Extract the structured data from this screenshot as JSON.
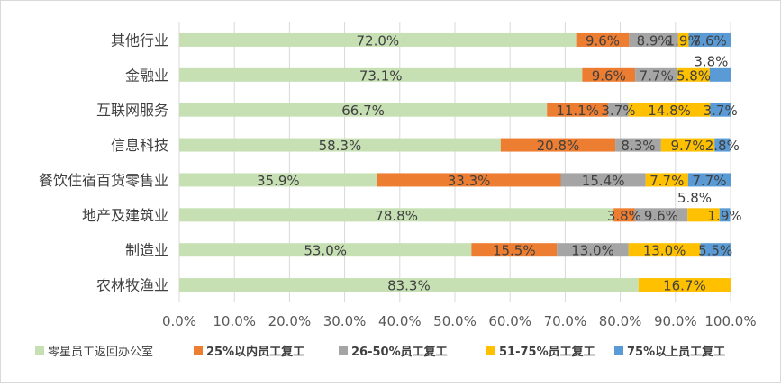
{
  "chart_data": {
    "type": "bar",
    "orientation": "horizontal",
    "stacked": true,
    "percent_stacked": true,
    "title": "",
    "xlabel": "",
    "ylabel": "",
    "xlim": [
      0,
      100
    ],
    "x_ticks": [
      "0.0%",
      "10.0%",
      "20.0%",
      "30.0%",
      "40.0%",
      "50.0%",
      "60.0%",
      "70.0%",
      "80.0%",
      "90.0%",
      "100.0%"
    ],
    "grid": true,
    "legend_position": "bottom",
    "categories": [
      "其他行业",
      "金融业",
      "互联网服务",
      "信息科技",
      "餐饮住宿百货零售业",
      "地产及建筑业",
      "制造业",
      "农林牧渔业"
    ],
    "series": [
      {
        "name": "零星员工返回办公室",
        "color": "#c6e0b4",
        "values": [
          72.0,
          73.1,
          66.7,
          58.3,
          35.9,
          78.8,
          53.0,
          83.3
        ],
        "labels": [
          "72.0%",
          "73.1%",
          "66.7%",
          "58.3%",
          "35.9%",
          "78.8%",
          "53.0%",
          "83.3%"
        ]
      },
      {
        "name": "25%以内员工复工",
        "color": "#ed7d31",
        "values": [
          9.6,
          9.6,
          11.1,
          20.8,
          33.3,
          3.8,
          15.5,
          0
        ],
        "labels": [
          "9.6%",
          "9.6%",
          "11.1%",
          "20.8%",
          "33.3%",
          "3.8%",
          "15.5%",
          ""
        ]
      },
      {
        "name": "26-50%员工复工",
        "color": "#a5a5a5",
        "values": [
          8.9,
          7.7,
          3.7,
          8.3,
          15.4,
          9.6,
          13.0,
          0
        ],
        "labels": [
          "8.9%",
          "7.7%",
          "3.7%",
          "8.3%",
          "15.4%",
          "9.6%",
          "13.0%",
          ""
        ]
      },
      {
        "name": "51-75%员工复工",
        "color": "#ffc000",
        "values": [
          1.9,
          5.8,
          14.8,
          9.7,
          7.7,
          5.8,
          13.0,
          16.7
        ],
        "labels": [
          "1.9%",
          "5.8%",
          "14.8%",
          "9.7%",
          "7.7%",
          "5.8%",
          "13.0%",
          "16.7%"
        ]
      },
      {
        "name": "75%以上员工复工",
        "color": "#5b9bd5",
        "values": [
          7.6,
          3.8,
          3.7,
          2.8,
          7.7,
          1.9,
          5.5,
          0
        ],
        "labels": [
          "7.6%",
          "3.8%",
          "3.7%",
          "2.8%",
          "7.7%",
          "1.9%",
          "5.5%",
          ""
        ]
      }
    ]
  }
}
